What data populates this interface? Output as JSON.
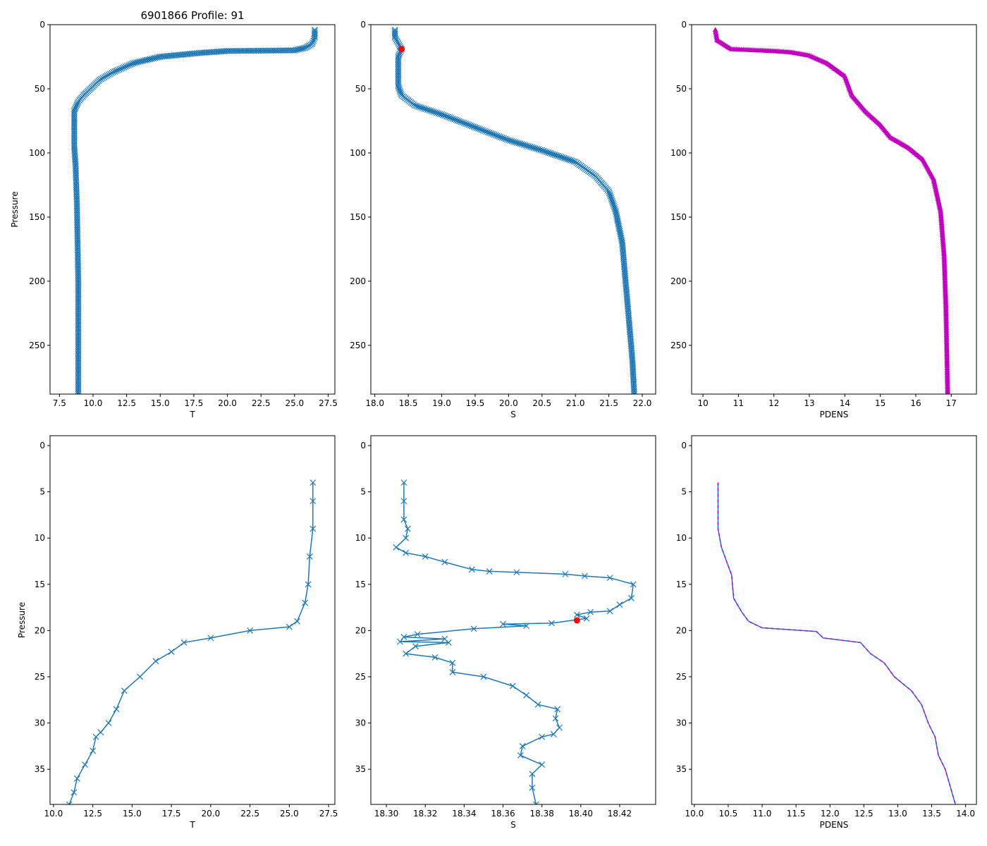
{
  "title": "6901866 Profile: 91",
  "colors": {
    "line": "#1f77b4",
    "pdens": "#bf00bf",
    "highlight": "#ff0000"
  },
  "chart_data": [
    {
      "type": "line",
      "panel": "top-temperature",
      "xlabel": "T",
      "ylabel": "Pressure",
      "xlim": [
        6.8,
        28.0
      ],
      "ylim": [
        288,
        0
      ],
      "xticks": [
        "7.5",
        "10.0",
        "12.5",
        "15.0",
        "17.5",
        "20.0",
        "22.5",
        "25.0",
        "27.5"
      ],
      "yticks": [
        "0",
        "50",
        "100",
        "150",
        "200",
        "250"
      ],
      "marker": "x",
      "color": "line",
      "dense": true,
      "points": [
        [
          26.5,
          4
        ],
        [
          26.5,
          10
        ],
        [
          26.3,
          15
        ],
        [
          25.8,
          18
        ],
        [
          25,
          20
        ],
        [
          22.5,
          20.3
        ],
        [
          20,
          20.5
        ],
        [
          18,
          22
        ],
        [
          15,
          25
        ],
        [
          13,
          30
        ],
        [
          11.5,
          37
        ],
        [
          10.5,
          43
        ],
        [
          9.8,
          50
        ],
        [
          9.3,
          55
        ],
        [
          8.9,
          60
        ],
        [
          8.6,
          67
        ],
        [
          8.6,
          80
        ],
        [
          8.6,
          95
        ],
        [
          8.7,
          110
        ],
        [
          8.8,
          140
        ],
        [
          8.9,
          200
        ],
        [
          8.9,
          288
        ]
      ]
    },
    {
      "type": "line",
      "panel": "top-salinity",
      "xlabel": "S",
      "ylabel": "",
      "xlim": [
        17.94,
        22.2
      ],
      "ylim": [
        288,
        0
      ],
      "xticks": [
        "18.0",
        "18.5",
        "19.0",
        "19.5",
        "20.0",
        "20.5",
        "21.0",
        "21.5",
        "22.0"
      ],
      "yticks": [
        "0",
        "50",
        "100",
        "150",
        "200",
        "250"
      ],
      "marker": "x",
      "color": "line",
      "dense": true,
      "highlight": [
        18.4,
        19
      ],
      "points": [
        [
          18.3,
          4
        ],
        [
          18.3,
          10
        ],
        [
          18.4,
          19
        ],
        [
          18.35,
          25
        ],
        [
          18.35,
          48
        ],
        [
          18.4,
          55
        ],
        [
          18.6,
          63
        ],
        [
          19,
          70
        ],
        [
          19.5,
          80
        ],
        [
          20,
          90
        ],
        [
          20.5,
          98
        ],
        [
          21,
          107
        ],
        [
          21.3,
          118
        ],
        [
          21.5,
          130
        ],
        [
          21.6,
          145
        ],
        [
          21.7,
          170
        ],
        [
          21.75,
          200
        ],
        [
          21.8,
          230
        ],
        [
          21.85,
          260
        ],
        [
          21.88,
          288
        ]
      ]
    },
    {
      "type": "line",
      "panel": "top-pdens",
      "xlabel": "PDENS",
      "ylabel": "",
      "xlim": [
        9.68,
        17.71
      ],
      "ylim": [
        288,
        0
      ],
      "xticks": [
        "10",
        "11",
        "12",
        "13",
        "14",
        "15",
        "16",
        "17"
      ],
      "yticks": [
        "0",
        "50",
        "100",
        "150",
        "200",
        "250"
      ],
      "marker": "triangle",
      "color": "pdens",
      "dense": true,
      "points": [
        [
          10.35,
          4
        ],
        [
          10.4,
          12
        ],
        [
          10.8,
          19
        ],
        [
          12,
          20.5
        ],
        [
          12.5,
          21.5
        ],
        [
          13,
          24
        ],
        [
          13.5,
          30
        ],
        [
          14,
          40
        ],
        [
          14.2,
          55
        ],
        [
          14.6,
          68
        ],
        [
          15,
          78
        ],
        [
          15.3,
          88
        ],
        [
          15.8,
          96
        ],
        [
          16.2,
          105
        ],
        [
          16.5,
          120
        ],
        [
          16.7,
          145
        ],
        [
          16.8,
          180
        ],
        [
          16.85,
          220
        ],
        [
          16.9,
          288
        ]
      ]
    },
    {
      "type": "line",
      "panel": "bottom-temperature",
      "xlabel": "T",
      "ylabel": "Pressure",
      "xlim": [
        9.78,
        27.9
      ],
      "ylim": [
        38.8,
        -1.07
      ],
      "xticks": [
        "10.0",
        "12.5",
        "15.0",
        "17.5",
        "20.0",
        "22.5",
        "25.0",
        "27.5"
      ],
      "yticks": [
        "0",
        "5",
        "10",
        "15",
        "20",
        "25",
        "30",
        "35"
      ],
      "marker": "x",
      "color": "line",
      "dense": false,
      "points": [
        [
          26.5,
          4
        ],
        [
          26.5,
          6
        ],
        [
          26.5,
          9
        ],
        [
          26.3,
          12
        ],
        [
          26.2,
          15
        ],
        [
          26,
          17
        ],
        [
          25.5,
          19
        ],
        [
          25,
          19.6
        ],
        [
          22.5,
          20
        ],
        [
          20,
          20.8
        ],
        [
          18.3,
          21.3
        ],
        [
          17.5,
          22.3
        ],
        [
          16.5,
          23.3
        ],
        [
          15.5,
          25
        ],
        [
          14.5,
          26.5
        ],
        [
          14,
          28.5
        ],
        [
          13.5,
          30
        ],
        [
          13,
          31
        ],
        [
          12.7,
          31.5
        ],
        [
          12.5,
          33
        ],
        [
          12,
          34.5
        ],
        [
          11.5,
          36
        ],
        [
          11.3,
          37.5
        ],
        [
          11,
          38.8
        ]
      ]
    },
    {
      "type": "line",
      "panel": "bottom-salinity",
      "xlabel": "S",
      "ylabel": "",
      "xlim": [
        18.292,
        18.4385
      ],
      "ylim": [
        38.8,
        -1.07
      ],
      "xticks": [
        "18.30",
        "18.32",
        "18.34",
        "18.36",
        "18.38",
        "18.40",
        "18.42"
      ],
      "yticks": [
        "0",
        "5",
        "10",
        "15",
        "20",
        "25",
        "30",
        "35"
      ],
      "marker": "x",
      "color": "line",
      "dense": false,
      "highlight": [
        18.398,
        18.9
      ],
      "points": [
        [
          18.309,
          4
        ],
        [
          18.309,
          6
        ],
        [
          18.309,
          8
        ],
        [
          18.311,
          9
        ],
        [
          18.31,
          10
        ],
        [
          18.305,
          11
        ],
        [
          18.31,
          11.6
        ],
        [
          18.32,
          12
        ],
        [
          18.33,
          12.6
        ],
        [
          18.344,
          13.4
        ],
        [
          18.353,
          13.6
        ],
        [
          18.367,
          13.7
        ],
        [
          18.392,
          13.9
        ],
        [
          18.402,
          14.1
        ],
        [
          18.415,
          14.3
        ],
        [
          18.427,
          15
        ],
        [
          18.426,
          16.5
        ],
        [
          18.42,
          17.2
        ],
        [
          18.415,
          17.9
        ],
        [
          18.405,
          18
        ],
        [
          18.398,
          18.3
        ],
        [
          18.403,
          18.7
        ],
        [
          18.385,
          19.2
        ],
        [
          18.36,
          19.3
        ],
        [
          18.372,
          19.5
        ],
        [
          18.345,
          19.8
        ],
        [
          18.316,
          20.4
        ],
        [
          18.309,
          20.7
        ],
        [
          18.33,
          20.9
        ],
        [
          18.307,
          21.2
        ],
        [
          18.332,
          21.3
        ],
        [
          18.315,
          21.7
        ],
        [
          18.31,
          22.5
        ],
        [
          18.325,
          22.9
        ],
        [
          18.334,
          23.5
        ],
        [
          18.334,
          24.5
        ],
        [
          18.35,
          25
        ],
        [
          18.365,
          26
        ],
        [
          18.372,
          27
        ],
        [
          18.378,
          28
        ],
        [
          18.388,
          28.5
        ],
        [
          18.387,
          29.5
        ],
        [
          18.389,
          30.5
        ],
        [
          18.386,
          31.2
        ],
        [
          18.38,
          31.5
        ],
        [
          18.37,
          32.5
        ],
        [
          18.369,
          33.5
        ],
        [
          18.38,
          34.5
        ],
        [
          18.375,
          35.5
        ],
        [
          18.375,
          37
        ],
        [
          18.377,
          38.8
        ]
      ]
    },
    {
      "type": "line",
      "panel": "bottom-pdens",
      "xlabel": "PDENS",
      "ylabel": "",
      "xlim": [
        9.96,
        14.16
      ],
      "ylim": [
        38.8,
        -1.07
      ],
      "xticks": [
        "10.0",
        "10.5",
        "11.0",
        "11.5",
        "12.0",
        "12.5",
        "13.0",
        "13.5",
        "14.0"
      ],
      "yticks": [
        "0",
        "5",
        "10",
        "15",
        "20",
        "25",
        "30",
        "35"
      ],
      "marker": "none",
      "color": "pdens",
      "dashed": true,
      "dense": false,
      "points": [
        [
          10.35,
          4
        ],
        [
          10.35,
          9
        ],
        [
          10.4,
          11
        ],
        [
          10.5,
          13
        ],
        [
          10.55,
          14
        ],
        [
          10.58,
          16.5
        ],
        [
          10.7,
          18
        ],
        [
          10.8,
          19
        ],
        [
          11,
          19.7
        ],
        [
          11.8,
          20.1
        ],
        [
          11.9,
          20.8
        ],
        [
          12.45,
          21.3
        ],
        [
          12.6,
          22.5
        ],
        [
          12.8,
          23.5
        ],
        [
          12.95,
          25
        ],
        [
          13.2,
          26.5
        ],
        [
          13.35,
          28
        ],
        [
          13.45,
          30
        ],
        [
          13.55,
          31.5
        ],
        [
          13.6,
          33.5
        ],
        [
          13.7,
          35
        ],
        [
          13.85,
          38.8
        ]
      ]
    }
  ]
}
